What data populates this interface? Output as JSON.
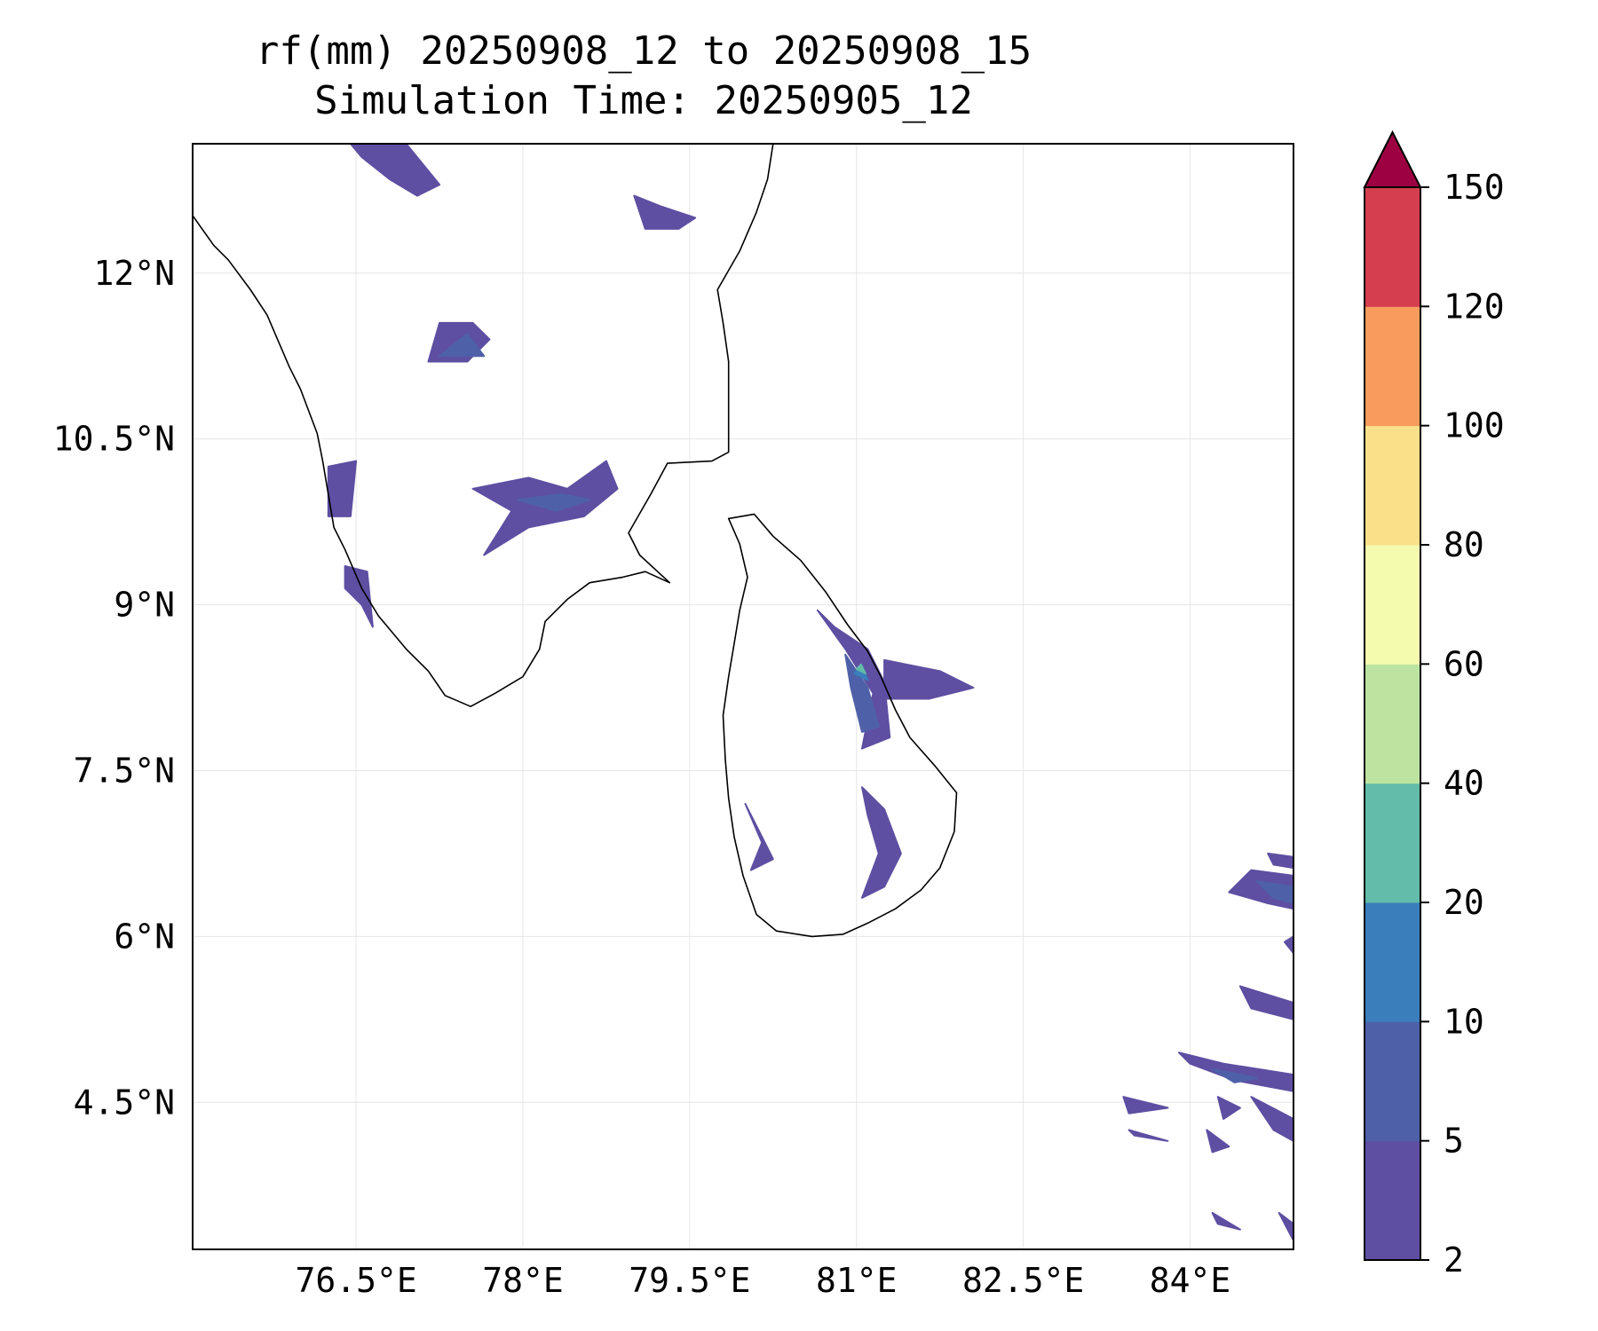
{
  "title": {
    "line1": "rf(mm) 20250908_12 to 20250908_15",
    "line2": "Simulation Time: 20250905_12"
  },
  "map": {
    "lon_range": [
      75.03,
      84.93
    ],
    "lat_range": [
      3.17,
      13.17
    ],
    "gridlines": true,
    "x_ticks": [
      {
        "value": 76.5,
        "label": "76.5°E"
      },
      {
        "value": 78.0,
        "label": "78°E"
      },
      {
        "value": 79.5,
        "label": "79.5°E"
      },
      {
        "value": 81.0,
        "label": "81°E"
      },
      {
        "value": 82.5,
        "label": "82.5°E"
      },
      {
        "value": 84.0,
        "label": "84°E"
      }
    ],
    "y_ticks": [
      {
        "value": 12.0,
        "label": "12°N"
      },
      {
        "value": 10.5,
        "label": "10.5°N"
      },
      {
        "value": 9.0,
        "label": "9°N"
      },
      {
        "value": 7.5,
        "label": "7.5°N"
      },
      {
        "value": 6.0,
        "label": "6°N"
      },
      {
        "value": 4.5,
        "label": "4.5°N"
      }
    ],
    "coastline_color": "#000000",
    "india_coast": [
      [
        75.03,
        12.52
      ],
      [
        75.22,
        12.25
      ],
      [
        75.35,
        12.12
      ],
      [
        75.55,
        11.85
      ],
      [
        75.7,
        11.62
      ],
      [
        75.9,
        11.15
      ],
      [
        76.0,
        10.95
      ],
      [
        76.15,
        10.55
      ],
      [
        76.2,
        10.3
      ],
      [
        76.25,
        10.0
      ],
      [
        76.3,
        9.7
      ],
      [
        76.4,
        9.5
      ],
      [
        76.55,
        9.15
      ],
      [
        76.7,
        8.9
      ],
      [
        76.95,
        8.6
      ],
      [
        77.15,
        8.4
      ],
      [
        77.3,
        8.18
      ],
      [
        77.53,
        8.08
      ],
      [
        77.75,
        8.2
      ],
      [
        78.0,
        8.35
      ],
      [
        78.15,
        8.6
      ],
      [
        78.2,
        8.85
      ],
      [
        78.4,
        9.05
      ],
      [
        78.6,
        9.2
      ],
      [
        78.9,
        9.25
      ],
      [
        79.1,
        9.3
      ],
      [
        79.32,
        9.2
      ],
      [
        79.05,
        9.45
      ],
      [
        78.95,
        9.65
      ],
      [
        79.15,
        10.0
      ],
      [
        79.3,
        10.28
      ],
      [
        79.7,
        10.3
      ],
      [
        79.85,
        10.38
      ],
      [
        79.85,
        10.8
      ],
      [
        79.85,
        11.2
      ],
      [
        79.8,
        11.55
      ],
      [
        79.75,
        11.85
      ],
      [
        79.95,
        12.2
      ],
      [
        80.1,
        12.55
      ],
      [
        80.2,
        12.85
      ],
      [
        80.25,
        13.17
      ]
    ],
    "sri_lanka_coast": [
      [
        79.85,
        9.78
      ],
      [
        80.08,
        9.82
      ],
      [
        80.25,
        9.62
      ],
      [
        80.5,
        9.4
      ],
      [
        80.72,
        9.12
      ],
      [
        80.92,
        8.82
      ],
      [
        81.1,
        8.58
      ],
      [
        81.22,
        8.35
      ],
      [
        81.35,
        8.05
      ],
      [
        81.48,
        7.8
      ],
      [
        81.7,
        7.55
      ],
      [
        81.9,
        7.3
      ],
      [
        81.88,
        6.95
      ],
      [
        81.75,
        6.62
      ],
      [
        81.58,
        6.42
      ],
      [
        81.35,
        6.25
      ],
      [
        81.1,
        6.12
      ],
      [
        80.88,
        6.02
      ],
      [
        80.6,
        6.0
      ],
      [
        80.28,
        6.05
      ],
      [
        80.1,
        6.2
      ],
      [
        79.98,
        6.55
      ],
      [
        79.9,
        6.9
      ],
      [
        79.85,
        7.25
      ],
      [
        79.82,
        7.6
      ],
      [
        79.8,
        8.0
      ],
      [
        79.85,
        8.35
      ],
      [
        79.9,
        8.65
      ],
      [
        79.95,
        8.95
      ],
      [
        80.02,
        9.25
      ],
      [
        79.95,
        9.55
      ],
      [
        79.85,
        9.78
      ]
    ],
    "rain_colors": [
      "#5e4fa2",
      "#4e61a8",
      "#3a7ebb",
      "#63bba9",
      "#bce4a0",
      "#f4fbaf",
      "#fbe08a",
      "#f99b5c",
      "#d53e4f",
      "#9e0142"
    ],
    "rain_patches": [
      {
        "level": 0,
        "points": [
          [
            76.45,
            13.17
          ],
          [
            76.95,
            13.17
          ],
          [
            77.25,
            12.8
          ],
          [
            77.05,
            12.7
          ],
          [
            76.8,
            12.85
          ],
          [
            76.55,
            13.05
          ]
        ]
      },
      {
        "level": 0,
        "points": [
          [
            79.0,
            12.7
          ],
          [
            79.25,
            12.6
          ],
          [
            79.55,
            12.5
          ],
          [
            79.4,
            12.4
          ],
          [
            79.1,
            12.4
          ]
        ]
      },
      {
        "level": 0,
        "points": [
          [
            77.15,
            11.2
          ],
          [
            77.5,
            11.2
          ],
          [
            77.7,
            11.4
          ],
          [
            77.55,
            11.55
          ],
          [
            77.25,
            11.55
          ]
        ]
      },
      {
        "level": 1,
        "points": [
          [
            77.25,
            11.25
          ],
          [
            77.65,
            11.25
          ],
          [
            77.5,
            11.45
          ]
        ]
      },
      {
        "level": 0,
        "points": [
          [
            76.25,
            10.25
          ],
          [
            76.5,
            10.3
          ],
          [
            76.45,
            9.8
          ],
          [
            76.25,
            9.8
          ]
        ]
      },
      {
        "level": 0,
        "points": [
          [
            77.55,
            10.05
          ],
          [
            78.05,
            10.15
          ],
          [
            78.4,
            10.05
          ],
          [
            78.75,
            10.3
          ],
          [
            78.85,
            10.05
          ],
          [
            78.55,
            9.8
          ],
          [
            78.05,
            9.7
          ],
          [
            77.65,
            9.45
          ],
          [
            77.9,
            9.85
          ]
        ]
      },
      {
        "level": 1,
        "points": [
          [
            77.95,
            9.95
          ],
          [
            78.35,
            10.0
          ],
          [
            78.6,
            9.95
          ],
          [
            78.3,
            9.85
          ]
        ]
      },
      {
        "level": 0,
        "points": [
          [
            76.4,
            9.35
          ],
          [
            76.6,
            9.3
          ],
          [
            76.65,
            8.8
          ],
          [
            76.55,
            9.0
          ],
          [
            76.4,
            9.15
          ]
        ]
      },
      {
        "level": 0,
        "points": [
          [
            80.65,
            8.95
          ],
          [
            80.9,
            8.6
          ],
          [
            81.15,
            8.2
          ],
          [
            81.05,
            7.7
          ],
          [
            81.3,
            7.8
          ],
          [
            81.25,
            8.3
          ],
          [
            81.1,
            8.6
          ],
          [
            80.8,
            8.8
          ]
        ]
      },
      {
        "level": 1,
        "points": [
          [
            80.9,
            8.55
          ],
          [
            81.1,
            8.25
          ],
          [
            81.2,
            7.9
          ],
          [
            81.05,
            7.85
          ],
          [
            80.95,
            8.25
          ]
        ]
      },
      {
        "level": 2,
        "points": [
          [
            80.98,
            8.38
          ],
          [
            81.1,
            8.32
          ],
          [
            81.05,
            8.45
          ]
        ]
      },
      {
        "level": 3,
        "points": [
          [
            81.0,
            8.42
          ],
          [
            81.08,
            8.38
          ],
          [
            81.04,
            8.46
          ]
        ]
      },
      {
        "level": 0,
        "points": [
          [
            81.25,
            8.5
          ],
          [
            81.75,
            8.4
          ],
          [
            82.05,
            8.25
          ],
          [
            81.65,
            8.15
          ],
          [
            81.25,
            8.15
          ]
        ]
      },
      {
        "level": 0,
        "points": [
          [
            81.05,
            7.35
          ],
          [
            81.25,
            7.15
          ],
          [
            81.4,
            6.75
          ],
          [
            81.25,
            6.45
          ],
          [
            81.05,
            6.35
          ],
          [
            81.2,
            6.75
          ],
          [
            81.1,
            7.1
          ]
        ]
      },
      {
        "level": 0,
        "points": [
          [
            80.0,
            7.2
          ],
          [
            80.15,
            6.9
          ],
          [
            80.25,
            6.7
          ],
          [
            80.05,
            6.6
          ],
          [
            80.15,
            6.85
          ]
        ]
      },
      {
        "level": 0,
        "points": [
          [
            84.35,
            6.4
          ],
          [
            84.55,
            6.6
          ],
          [
            84.93,
            6.55
          ],
          [
            84.93,
            6.25
          ],
          [
            84.7,
            6.3
          ]
        ]
      },
      {
        "level": 1,
        "points": [
          [
            84.6,
            6.5
          ],
          [
            84.93,
            6.45
          ],
          [
            84.93,
            6.3
          ],
          [
            84.75,
            6.35
          ]
        ]
      },
      {
        "level": 0,
        "points": [
          [
            84.7,
            6.75
          ],
          [
            84.93,
            6.72
          ],
          [
            84.93,
            6.62
          ],
          [
            84.75,
            6.65
          ]
        ]
      },
      {
        "level": 0,
        "points": [
          [
            84.45,
            5.55
          ],
          [
            84.93,
            5.4
          ],
          [
            84.93,
            5.25
          ],
          [
            84.55,
            5.35
          ]
        ]
      },
      {
        "level": 0,
        "points": [
          [
            83.9,
            4.95
          ],
          [
            84.3,
            4.85
          ],
          [
            84.93,
            4.75
          ],
          [
            84.93,
            4.6
          ],
          [
            84.4,
            4.7
          ],
          [
            84.0,
            4.85
          ]
        ]
      },
      {
        "level": 1,
        "points": [
          [
            84.2,
            4.8
          ],
          [
            84.6,
            4.72
          ],
          [
            84.4,
            4.68
          ]
        ]
      },
      {
        "level": 0,
        "points": [
          [
            83.4,
            4.55
          ],
          [
            83.8,
            4.45
          ],
          [
            83.45,
            4.4
          ]
        ]
      },
      {
        "level": 0,
        "points": [
          [
            84.25,
            4.55
          ],
          [
            84.45,
            4.45
          ],
          [
            84.3,
            4.35
          ]
        ]
      },
      {
        "level": 0,
        "points": [
          [
            84.55,
            4.55
          ],
          [
            84.93,
            4.35
          ],
          [
            84.93,
            4.15
          ],
          [
            84.75,
            4.25
          ]
        ]
      },
      {
        "level": 0,
        "points": [
          [
            83.45,
            4.25
          ],
          [
            83.8,
            4.15
          ],
          [
            83.5,
            4.2
          ]
        ]
      },
      {
        "level": 0,
        "points": [
          [
            84.15,
            4.25
          ],
          [
            84.35,
            4.1
          ],
          [
            84.2,
            4.05
          ]
        ]
      },
      {
        "level": 0,
        "points": [
          [
            84.2,
            3.5
          ],
          [
            84.45,
            3.35
          ],
          [
            84.25,
            3.4
          ]
        ]
      },
      {
        "level": 0,
        "points": [
          [
            84.8,
            3.5
          ],
          [
            84.93,
            3.4
          ],
          [
            84.93,
            3.25
          ]
        ]
      },
      {
        "level": 0,
        "points": [
          [
            84.85,
            5.95
          ],
          [
            84.93,
            6.0
          ],
          [
            84.93,
            5.85
          ]
        ]
      }
    ]
  },
  "colorbar": {
    "levels": [
      "2",
      "5",
      "10",
      "20",
      "40",
      "60",
      "80",
      "100",
      "120",
      "150"
    ],
    "colors": [
      "#5e4fa2",
      "#4e61a8",
      "#3a7ebb",
      "#63bba9",
      "#bce4a0",
      "#f4fbaf",
      "#fbe08a",
      "#f99b5c",
      "#d53e4f"
    ],
    "extend_color": "#9e0142"
  }
}
